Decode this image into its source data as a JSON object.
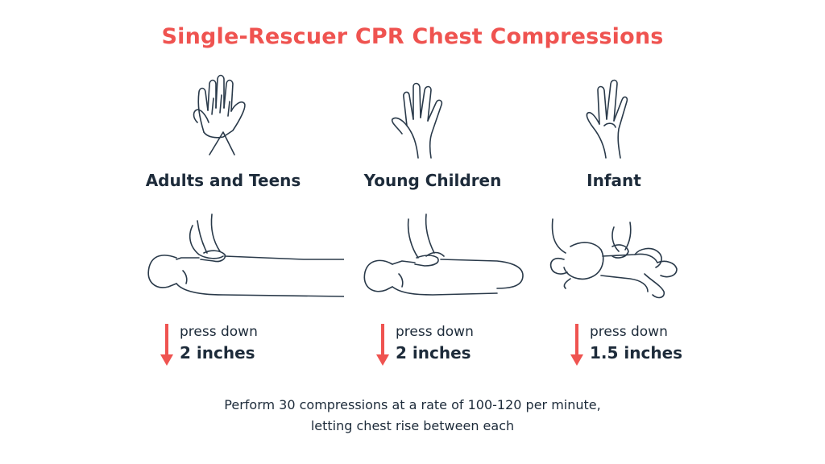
{
  "title": "Single-Rescuer CPR Chest Compressions",
  "colors": {
    "accent": "#ef5350",
    "text": "#1d2b3a"
  },
  "groups": [
    {
      "label": "Adults and Teens",
      "hand_icon": "two-hands-interlocked-icon",
      "body_icon": "adult-chest-compression-icon",
      "press_label": "press down",
      "depth": "2 inches"
    },
    {
      "label": "Young Children",
      "hand_icon": "one-hand-icon",
      "body_icon": "child-chest-compression-icon",
      "press_label": "press down",
      "depth": "2 inches"
    },
    {
      "label": "Infant",
      "hand_icon": "two-fingers-icon",
      "body_icon": "infant-chest-compression-icon",
      "press_label": "press down",
      "depth": "1.5 inches"
    }
  ],
  "footer": {
    "line1": "Perform 30 compressions at a rate of 100-120 per minute,",
    "line2": "letting chest rise between each"
  }
}
